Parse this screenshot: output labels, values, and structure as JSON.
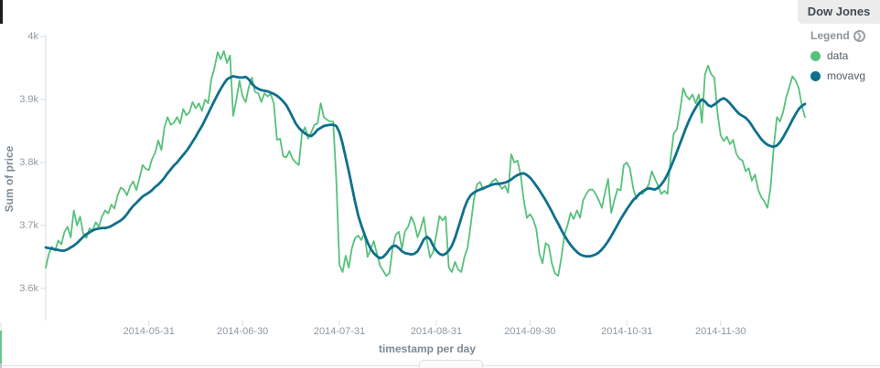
{
  "panel": {
    "title": "Dow Jones"
  },
  "legend": {
    "label": "Legend"
  },
  "chart_data": {
    "type": "line",
    "title": "Dow Jones",
    "xlabel": "timestamp per day",
    "ylabel": "Sum of price",
    "x_start_date": "2014-04-28",
    "x_unit": "days since start",
    "x_domain": [
      0,
      243
    ],
    "ylim": [
      3.549,
      4.003
    ],
    "grid": false,
    "legend_position": "right",
    "axis_color": "#d9dde1",
    "y_ticks": [
      {
        "value": 3.6,
        "label": "3.6k"
      },
      {
        "value": 3.7,
        "label": "3.7k"
      },
      {
        "value": 3.8,
        "label": "3.8k"
      },
      {
        "value": 3.9,
        "label": "3.9k"
      },
      {
        "value": 4.0,
        "label": "4k"
      }
    ],
    "x_ticks": [
      {
        "day": 33,
        "label": "2014-05-31"
      },
      {
        "day": 63,
        "label": "2014-06-30"
      },
      {
        "day": 94,
        "label": "2014-07-31"
      },
      {
        "day": 125,
        "label": "2014-08-31"
      },
      {
        "day": 155,
        "label": "2014-09-30"
      },
      {
        "day": 186,
        "label": "2014-10-31"
      },
      {
        "day": 216,
        "label": "2014-11-30"
      }
    ],
    "series": [
      {
        "name": "data",
        "color": "#57c17b",
        "values": [
          3.633,
          3.655,
          3.666,
          3.66,
          3.676,
          3.67,
          3.69,
          3.698,
          3.681,
          3.724,
          3.7,
          3.714,
          3.687,
          3.68,
          3.695,
          3.692,
          3.705,
          3.698,
          3.714,
          3.724,
          3.719,
          3.733,
          3.727,
          3.748,
          3.76,
          3.757,
          3.748,
          3.762,
          3.77,
          3.756,
          3.775,
          3.796,
          3.79,
          3.788,
          3.805,
          3.815,
          3.835,
          3.82,
          3.856,
          3.872,
          3.86,
          3.863,
          3.872,
          3.862,
          3.885,
          3.875,
          3.88,
          3.896,
          3.886,
          3.894,
          3.882,
          3.9,
          3.894,
          3.932,
          3.95,
          3.975,
          3.964,
          3.977,
          3.958,
          3.97,
          3.874,
          3.9,
          3.93,
          3.905,
          3.896,
          3.92,
          3.935,
          3.912,
          3.91,
          3.896,
          3.91,
          3.905,
          3.909,
          3.894,
          3.836,
          3.838,
          3.81,
          3.808,
          3.818,
          3.806,
          3.8,
          3.796,
          3.846,
          3.856,
          3.838,
          3.848,
          3.86,
          3.862,
          3.894,
          3.872,
          3.868,
          3.865,
          3.865,
          3.77,
          3.637,
          3.626,
          3.652,
          3.633,
          3.664,
          3.68,
          3.684,
          3.677,
          3.688,
          3.65,
          3.662,
          3.675,
          3.655,
          3.636,
          3.628,
          3.62,
          3.624,
          3.663,
          3.685,
          3.69,
          3.663,
          3.691,
          3.698,
          3.714,
          3.703,
          3.681,
          3.695,
          3.713,
          3.676,
          3.649,
          3.658,
          3.685,
          3.715,
          3.708,
          3.714,
          3.633,
          3.626,
          3.642,
          3.63,
          3.626,
          3.65,
          3.664,
          3.7,
          3.74,
          3.765,
          3.769,
          3.757,
          3.762,
          3.764,
          3.77,
          3.774,
          3.766,
          3.758,
          3.763,
          3.752,
          3.813,
          3.8,
          3.803,
          3.78,
          3.74,
          3.712,
          3.718,
          3.71,
          3.694,
          3.655,
          3.64,
          3.672,
          3.668,
          3.64,
          3.624,
          3.62,
          3.648,
          3.685,
          3.7,
          3.72,
          3.71,
          3.724,
          3.712,
          3.74,
          3.75,
          3.757,
          3.757,
          3.75,
          3.74,
          3.728,
          3.752,
          3.774,
          3.72,
          3.74,
          3.758,
          3.756,
          3.796,
          3.8,
          3.79,
          3.76,
          3.742,
          3.752,
          3.75,
          3.757,
          3.765,
          3.786,
          3.774,
          3.763,
          3.75,
          3.755,
          3.75,
          3.806,
          3.846,
          3.853,
          3.882,
          3.918,
          3.906,
          3.9,
          3.908,
          3.894,
          3.908,
          3.863,
          3.94,
          3.954,
          3.94,
          3.935,
          3.878,
          3.843,
          3.834,
          3.841,
          3.829,
          3.836,
          3.814,
          3.806,
          3.803,
          3.786,
          3.791,
          3.771,
          3.781,
          3.757,
          3.745,
          3.738,
          3.728,
          3.76,
          3.824,
          3.872,
          3.865,
          3.88,
          3.904,
          3.92,
          3.937,
          3.93,
          3.918,
          3.89,
          3.872
        ]
      },
      {
        "name": "movavg",
        "color": "#0f708c",
        "values": [
          3.665,
          3.664,
          3.663,
          3.662,
          3.661,
          3.66,
          3.66,
          3.662,
          3.665,
          3.668,
          3.672,
          3.677,
          3.682,
          3.686,
          3.689,
          3.692,
          3.694,
          3.695,
          3.696,
          3.696,
          3.697,
          3.699,
          3.702,
          3.705,
          3.708,
          3.712,
          3.718,
          3.725,
          3.731,
          3.736,
          3.741,
          3.746,
          3.749,
          3.752,
          3.756,
          3.761,
          3.765,
          3.77,
          3.776,
          3.783,
          3.789,
          3.795,
          3.8,
          3.806,
          3.812,
          3.818,
          3.825,
          3.833,
          3.841,
          3.85,
          3.858,
          3.868,
          3.878,
          3.888,
          3.898,
          3.908,
          3.917,
          3.925,
          3.932,
          3.935,
          3.937,
          3.936,
          3.935,
          3.935,
          3.936,
          3.932,
          3.925,
          3.92,
          3.917,
          3.915,
          3.914,
          3.913,
          3.911,
          3.909,
          3.906,
          3.902,
          3.897,
          3.891,
          3.882,
          3.872,
          3.862,
          3.855,
          3.85,
          3.846,
          3.843,
          3.842,
          3.846,
          3.852,
          3.855,
          3.858,
          3.859,
          3.86,
          3.86,
          3.858,
          3.848,
          3.83,
          3.808,
          3.786,
          3.762,
          3.738,
          3.716,
          3.7,
          3.686,
          3.673,
          3.663,
          3.656,
          3.651,
          3.648,
          3.65,
          3.655,
          3.662,
          3.667,
          3.668,
          3.664,
          3.659,
          3.656,
          3.655,
          3.654,
          3.655,
          3.659,
          3.668,
          3.678,
          3.682,
          3.678,
          3.668,
          3.66,
          3.655,
          3.653,
          3.655,
          3.66,
          3.668,
          3.68,
          3.696,
          3.712,
          3.728,
          3.74,
          3.748,
          3.752,
          3.755,
          3.757,
          3.759,
          3.761,
          3.763,
          3.765,
          3.766,
          3.766,
          3.767,
          3.768,
          3.77,
          3.773,
          3.777,
          3.78,
          3.782,
          3.783,
          3.78,
          3.776,
          3.77,
          3.763,
          3.756,
          3.748,
          3.74,
          3.731,
          3.722,
          3.712,
          3.703,
          3.693,
          3.684,
          3.676,
          3.669,
          3.663,
          3.658,
          3.654,
          3.652,
          3.651,
          3.651,
          3.652,
          3.654,
          3.657,
          3.662,
          3.668,
          3.675,
          3.683,
          3.692,
          3.701,
          3.71,
          3.718,
          3.726,
          3.733,
          3.74,
          3.745,
          3.75,
          3.754,
          3.757,
          3.759,
          3.758,
          3.757,
          3.76,
          3.765,
          3.772,
          3.781,
          3.792,
          3.804,
          3.817,
          3.83,
          3.843,
          3.856,
          3.868,
          3.878,
          3.887,
          3.895,
          3.9,
          3.897,
          3.891,
          3.889,
          3.892,
          3.896,
          3.9,
          3.902,
          3.899,
          3.894,
          3.888,
          3.882,
          3.877,
          3.874,
          3.871,
          3.866,
          3.859,
          3.851,
          3.844,
          3.837,
          3.832,
          3.828,
          3.826,
          3.825,
          3.827,
          3.832,
          3.84,
          3.849,
          3.858,
          3.868,
          3.877,
          3.885,
          3.89,
          3.893
        ]
      }
    ]
  }
}
